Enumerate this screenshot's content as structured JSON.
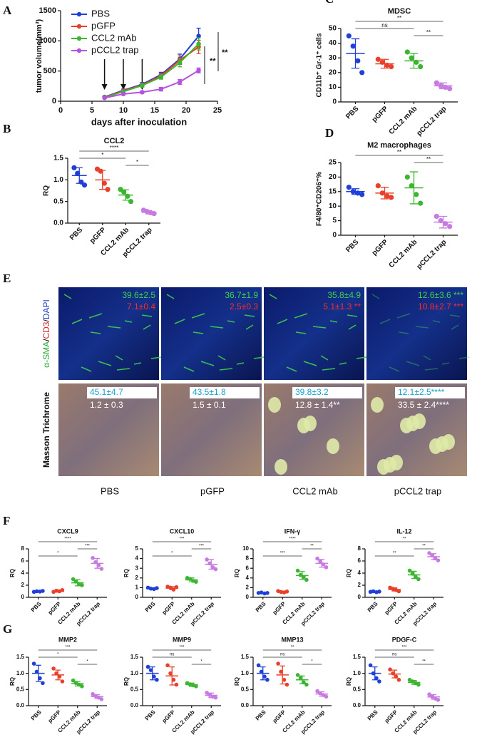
{
  "chart_data": [
    {
      "type": "line",
      "panel": "A",
      "xlabel": "days after inoculation",
      "ylabel": "tumor volume(mm³)",
      "x": [
        7,
        10,
        13,
        16,
        19,
        22
      ],
      "xlim": [
        0,
        25
      ],
      "xticks": [
        0,
        5,
        10,
        15,
        20,
        25
      ],
      "ylim": [
        0,
        1500
      ],
      "yticks": [
        0,
        500,
        1000,
        1500
      ],
      "treatment_days": [
        7,
        10,
        13
      ],
      "annotations": [
        "**",
        "**"
      ],
      "series": [
        {
          "name": "PBS",
          "color": "#1f3fd6",
          "values": [
            70,
            180,
            280,
            440,
            700,
            1080
          ],
          "errors": [
            10,
            20,
            30,
            40,
            80,
            130
          ]
        },
        {
          "name": "pGFP",
          "color": "#e8402a",
          "values": [
            65,
            170,
            270,
            420,
            680,
            900
          ],
          "errors": [
            10,
            20,
            25,
            40,
            70,
            110
          ]
        },
        {
          "name": "CCL2 mAb",
          "color": "#3cb531",
          "values": [
            60,
            160,
            260,
            400,
            640,
            950
          ],
          "errors": [
            10,
            20,
            25,
            35,
            70,
            100
          ]
        },
        {
          "name": "pCCL2 trap",
          "color": "#b74fe0",
          "values": [
            55,
            120,
            150,
            200,
            320,
            510
          ],
          "errors": [
            10,
            15,
            20,
            30,
            40,
            40
          ]
        }
      ]
    },
    {
      "type": "dotplot",
      "panel": "B",
      "title": "CCL2",
      "ylabel": "RQ",
      "categories": [
        "PBS",
        "pGFP",
        "CCL2 mAb",
        "pCCL2 trap"
      ],
      "colors": [
        "#1f3fd6",
        "#e8402a",
        "#3cb531",
        "#c77be0"
      ],
      "ylim": [
        0,
        1.5
      ],
      "yticks": [
        {
          "value": 0,
          "label": "0.0"
        },
        0.5,
        {
          "value": 1,
          "label": "1.0"
        },
        1.5
      ],
      "points": [
        [
          1.28,
          1.15,
          0.95,
          0.88
        ],
        [
          1.25,
          1.2,
          0.92,
          0.78
        ],
        [
          0.78,
          0.72,
          0.62,
          0.5
        ],
        [
          0.3,
          0.27,
          0.24,
          0.22
        ]
      ],
      "means": [
        1.1,
        1.0,
        0.65,
        0.25
      ],
      "sds": [
        0.18,
        0.22,
        0.12,
        0.04
      ],
      "brackets": [
        {
          "between": [
            "PBS",
            "pCCL2 trap"
          ],
          "label": "****"
        },
        {
          "between": [
            "PBS",
            "CCL2 mAb"
          ],
          "label": "*"
        },
        {
          "between": [
            "CCL2 mAb",
            "pCCL2 trap"
          ],
          "label": "*"
        }
      ]
    },
    {
      "type": "dotplot",
      "panel": "C",
      "title": "MDSC",
      "ylabel": "CD11b⁺ Gr-1⁺ cells",
      "categories": [
        "PBS",
        "pGFP",
        "CCL2 mAb",
        "pCCL2 trap"
      ],
      "colors": [
        "#1f3fd6",
        "#e8402a",
        "#3cb531",
        "#c77be0"
      ],
      "ylim": [
        0,
        50
      ],
      "yticks": [
        0,
        10,
        20,
        30,
        40,
        50
      ],
      "points": [
        [
          45,
          38,
          28,
          20
        ],
        [
          29,
          27,
          25,
          24
        ],
        [
          34,
          30,
          27,
          24
        ],
        [
          13,
          11,
          10,
          9
        ]
      ],
      "means": [
        33,
        26,
        28,
        11
      ],
      "sds": [
        10,
        3,
        5,
        2
      ],
      "brackets": [
        {
          "between": [
            "PBS",
            "pCCL2 trap"
          ],
          "label": "**"
        },
        {
          "between": [
            "PBS",
            "CCL2 mAb"
          ],
          "label": "ns"
        },
        {
          "between": [
            "CCL2 mAb",
            "pCCL2 trap"
          ],
          "label": "**"
        }
      ]
    },
    {
      "type": "dotplot",
      "panel": "D",
      "title": "M2  macrophages",
      "ylabel": "F4/80⁺CD206⁺%",
      "categories": [
        "PBS",
        "pGFP",
        "CCL2 mAb",
        "pCCL2 trap"
      ],
      "colors": [
        "#1f3fd6",
        "#e8402a",
        "#3cb531",
        "#c77be0"
      ],
      "ylim": [
        0,
        25
      ],
      "yticks": [
        0,
        5,
        10,
        15,
        20,
        25
      ],
      "points": [
        [
          16.5,
          15,
          14.5,
          14
        ],
        [
          17,
          14.5,
          13.5,
          13
        ],
        [
          20,
          17,
          14,
          11
        ],
        [
          6.5,
          5,
          4,
          3
        ]
      ],
      "means": [
        15,
        14.5,
        16.3,
        4.5
      ],
      "sds": [
        1,
        2,
        5.5,
        2
      ],
      "brackets": [
        {
          "between": [
            "PBS",
            "pCCL2 trap"
          ],
          "label": "**"
        },
        {
          "between": [
            "CCL2 mAb",
            "pCCL2 trap"
          ],
          "label": "**"
        }
      ]
    },
    {
      "type": "dotplot",
      "panel": "F",
      "title": "CXCL9",
      "ylabel": "RQ",
      "categories": [
        "PBS",
        "pGFP",
        "CCL2 mAb",
        "pCCL2 trap"
      ],
      "colors": [
        "#1f3fd6",
        "#e8402a",
        "#3cb531",
        "#c77be0"
      ],
      "ylim": [
        0,
        8
      ],
      "yticks": [
        0,
        2,
        4,
        6,
        8
      ],
      "points": [
        [
          0.9,
          1.0,
          0.95,
          1.05
        ],
        [
          0.9,
          1.1,
          1.0,
          1.2
        ],
        [
          3.0,
          2.6,
          2.2,
          2.0
        ],
        [
          6.5,
          5.8,
          5.3,
          4.7
        ]
      ],
      "means": [
        1.0,
        1.0,
        2.4,
        5.6
      ],
      "sds": [
        0.1,
        0.15,
        0.5,
        0.8
      ],
      "brackets": [
        {
          "between": [
            "PBS",
            "pCCL2 trap"
          ],
          "label": "****"
        },
        {
          "between": [
            "CCL2 mAb",
            "pCCL2 trap"
          ],
          "label": "***"
        },
        {
          "between": [
            "PBS",
            "CCL2 mAb"
          ],
          "label": "*"
        }
      ]
    },
    {
      "type": "dotplot",
      "title": "CXCL10",
      "ylabel": "RQ",
      "categories": [
        "PBS",
        "pGFP",
        "CCL2 mAb",
        "pCCL2 trap"
      ],
      "colors": [
        "#1f3fd6",
        "#e8402a",
        "#3cb531",
        "#c77be0"
      ],
      "ylim": [
        0,
        5
      ],
      "yticks": [
        0,
        1,
        2,
        3,
        4,
        5
      ],
      "points": [
        [
          1.0,
          0.9,
          0.85,
          0.95
        ],
        [
          1.1,
          1.0,
          0.8,
          1.05
        ],
        [
          2.0,
          1.9,
          1.7,
          1.6
        ],
        [
          3.9,
          3.5,
          3.1,
          2.9
        ]
      ],
      "means": [
        0.9,
        0.95,
        1.8,
        3.4
      ],
      "sds": [
        0.08,
        0.15,
        0.2,
        0.5
      ],
      "brackets": [
        {
          "between": [
            "PBS",
            "pCCL2 trap"
          ],
          "label": "***"
        },
        {
          "between": [
            "CCL2 mAb",
            "pCCL2 trap"
          ],
          "label": "***"
        },
        {
          "between": [
            "PBS",
            "CCL2 mAb"
          ],
          "label": "*"
        }
      ]
    },
    {
      "type": "dotplot",
      "title": "IFN-γ",
      "ylabel": "RQ",
      "categories": [
        "PBS",
        "pGFP",
        "CCL2 mAb",
        "pCCL2 trap"
      ],
      "colors": [
        "#1f3fd6",
        "#e8402a",
        "#3cb531",
        "#c77be0"
      ],
      "ylim": [
        0,
        10
      ],
      "yticks": [
        0,
        2,
        4,
        6,
        8,
        10
      ],
      "points": [
        [
          0.9,
          1.0,
          0.8,
          0.9
        ],
        [
          1.3,
          1.1,
          1.0,
          1.2
        ],
        [
          5.5,
          4.6,
          4.2,
          3.6
        ],
        [
          8.0,
          7.4,
          6.8,
          6.2
        ]
      ],
      "means": [
        0.9,
        1.15,
        4.5,
        7.0
      ],
      "sds": [
        0.1,
        0.15,
        0.8,
        0.8
      ],
      "brackets": [
        {
          "between": [
            "PBS",
            "pCCL2 trap"
          ],
          "label": "****"
        },
        {
          "between": [
            "CCL2 mAb",
            "pCCL2 trap"
          ],
          "label": "**"
        },
        {
          "between": [
            "PBS",
            "CCL2 mAb"
          ],
          "label": "***"
        }
      ]
    },
    {
      "type": "dotplot",
      "title": "IL-12",
      "ylabel": "RQ",
      "categories": [
        "PBS",
        "pGFP",
        "CCL2 mAb",
        "pCCL2 trap"
      ],
      "colors": [
        "#1f3fd6",
        "#e8402a",
        "#3cb531",
        "#c77be0"
      ],
      "ylim": [
        0,
        8
      ],
      "yticks": [
        0,
        2,
        4,
        6,
        8
      ],
      "points": [
        [
          0.9,
          1.0,
          0.85,
          0.95
        ],
        [
          1.6,
          1.4,
          1.2,
          1.0
        ],
        [
          4.4,
          3.9,
          3.4,
          3.0
        ],
        [
          7.3,
          6.9,
          6.5,
          6.1
        ]
      ],
      "means": [
        0.9,
        1.3,
        3.7,
        6.7
      ],
      "sds": [
        0.08,
        0.25,
        0.6,
        0.5
      ],
      "brackets": [
        {
          "between": [
            "PBS",
            "pCCL2 trap"
          ],
          "label": "**"
        },
        {
          "between": [
            "CCL2 mAb",
            "pCCL2 trap"
          ],
          "label": "**"
        },
        {
          "between": [
            "PBS",
            "CCL2 mAb"
          ],
          "label": "**"
        }
      ]
    },
    {
      "type": "dotplot",
      "panel": "G",
      "title": "MMP2",
      "ylabel": "RQ",
      "categories": [
        "PBS",
        "pGFP",
        "CCL2 mAb",
        "pCCL2 trap"
      ],
      "colors": [
        "#1f3fd6",
        "#e8402a",
        "#3cb531",
        "#c77be0"
      ],
      "ylim": [
        0,
        1.5
      ],
      "yticks": [
        {
          "value": 0,
          "label": "0.0"
        },
        0.5,
        {
          "value": 1,
          "label": "1.0"
        },
        1.5
      ],
      "points": [
        [
          1.3,
          1.05,
          0.85,
          0.7
        ],
        [
          1.15,
          1.0,
          0.9,
          0.75
        ],
        [
          0.78,
          0.7,
          0.65,
          0.6
        ],
        [
          0.36,
          0.3,
          0.25,
          0.2
        ]
      ],
      "means": [
        1.0,
        0.95,
        0.68,
        0.28
      ],
      "sds": [
        0.25,
        0.15,
        0.07,
        0.06
      ],
      "brackets": [
        {
          "between": [
            "PBS",
            "pCCL2 trap"
          ],
          "label": "***"
        },
        {
          "between": [
            "PBS",
            "CCL2 mAb"
          ],
          "label": "*"
        },
        {
          "between": [
            "CCL2 mAb",
            "pCCL2 trap"
          ],
          "label": "*"
        }
      ]
    },
    {
      "type": "dotplot",
      "title": "MMP9",
      "ylabel": "RQ",
      "categories": [
        "PBS",
        "pGFP",
        "CCL2 mAb",
        "pCCL2 trap"
      ],
      "colors": [
        "#1f3fd6",
        "#e8402a",
        "#3cb531",
        "#c77be0"
      ],
      "ylim": [
        0,
        1.5
      ],
      "yticks": [
        {
          "value": 0,
          "label": "0.0"
        },
        0.5,
        {
          "value": 1,
          "label": "1.0"
        },
        1.5
      ],
      "points": [
        [
          1.2,
          1.1,
          0.9,
          0.8
        ],
        [
          1.25,
          1.0,
          0.8,
          0.65
        ],
        [
          0.7,
          0.66,
          0.63,
          0.6
        ],
        [
          0.4,
          0.33,
          0.28,
          0.25
        ]
      ],
      "means": [
        1.0,
        0.92,
        0.65,
        0.32
      ],
      "sds": [
        0.2,
        0.28,
        0.05,
        0.07
      ],
      "brackets": [
        {
          "between": [
            "PBS",
            "pCCL2 trap"
          ],
          "label": "***"
        },
        {
          "between": [
            "PBS",
            "CCL2 mAb"
          ],
          "label": "ns"
        },
        {
          "between": [
            "CCL2 mAb",
            "pCCL2 trap"
          ],
          "label": "*"
        }
      ]
    },
    {
      "type": "dotplot",
      "title": "MMP13",
      "ylabel": "RQ",
      "categories": [
        "PBS",
        "pGFP",
        "CCL2 mAb",
        "pCCL2 trap"
      ],
      "colors": [
        "#1f3fd6",
        "#e8402a",
        "#3cb531",
        "#c77be0"
      ],
      "ylim": [
        0,
        1.5
      ],
      "yticks": [
        {
          "value": 0,
          "label": "0.0"
        },
        0.5,
        {
          "value": 1,
          "label": "1.0"
        },
        1.5
      ],
      "points": [
        [
          1.25,
          1.05,
          0.9,
          0.8
        ],
        [
          1.3,
          1.05,
          0.8,
          0.65
        ],
        [
          0.95,
          0.85,
          0.72,
          0.65
        ],
        [
          0.45,
          0.38,
          0.33,
          0.28
        ]
      ],
      "means": [
        1.0,
        0.95,
        0.8,
        0.36
      ],
      "sds": [
        0.2,
        0.28,
        0.12,
        0.07
      ],
      "brackets": [
        {
          "between": [
            "PBS",
            "pCCL2 trap"
          ],
          "label": "**"
        },
        {
          "between": [
            "PBS",
            "CCL2 mAb"
          ],
          "label": "ns"
        },
        {
          "between": [
            "CCL2 mAb",
            "pCCL2 trap"
          ],
          "label": "*"
        }
      ]
    },
    {
      "type": "dotplot",
      "title": "PDGF-C",
      "ylabel": "RQ",
      "categories": [
        "PBS",
        "pGFP",
        "CCL2 mAb",
        "pCCL2 trap"
      ],
      "colors": [
        "#1f3fd6",
        "#e8402a",
        "#3cb531",
        "#c77be0"
      ],
      "ylim": [
        0,
        1.5
      ],
      "yticks": [
        {
          "value": 0,
          "label": "0.0"
        },
        0.5,
        {
          "value": 1,
          "label": "1.0"
        },
        1.5
      ],
      "points": [
        [
          1.25,
          1.0,
          0.85,
          0.75
        ],
        [
          1.12,
          1.0,
          0.9,
          0.8
        ],
        [
          0.8,
          0.75,
          0.7,
          0.65
        ],
        [
          0.35,
          0.28,
          0.22,
          0.18
        ]
      ],
      "means": [
        1.0,
        0.98,
        0.72,
        0.27
      ],
      "sds": [
        0.2,
        0.12,
        0.06,
        0.07
      ],
      "brackets": [
        {
          "between": [
            "PBS",
            "pCCL2 trap"
          ],
          "label": "***"
        },
        {
          "between": [
            "PBS",
            "CCL2 mAb"
          ],
          "label": "ns"
        },
        {
          "between": [
            "CCL2 mAb",
            "pCCL2 trap"
          ],
          "label": "**"
        }
      ]
    }
  ],
  "image_panel": {
    "panel": "E",
    "row_labels": [
      [
        "α-SMA",
        "/",
        "CD3",
        "/",
        "DAPI"
      ],
      [
        "Masson Trichrome"
      ]
    ],
    "columns": [
      "PBS",
      "pGFP",
      "CCL2 mAb",
      "pCCL2 trap"
    ],
    "row1": [
      [
        "39.6±2.5",
        "7.1±0.4"
      ],
      [
        "36.7±1.9",
        "2.5±0.3"
      ],
      [
        "35.8±4.9",
        "5.1±1.3 **"
      ],
      [
        "12.6±3.6 ***",
        "10.8±2.7 ***"
      ]
    ],
    "row2": [
      [
        "45.1±4.7",
        "1.2 ± 0.3"
      ],
      [
        "43.5±1.8",
        "1.5 ± 0.1"
      ],
      [
        "39.8±3.2",
        "12.8 ± 1.4**"
      ],
      [
        "12.1±2.5****",
        "33.5 ± 2.4****"
      ]
    ]
  }
}
